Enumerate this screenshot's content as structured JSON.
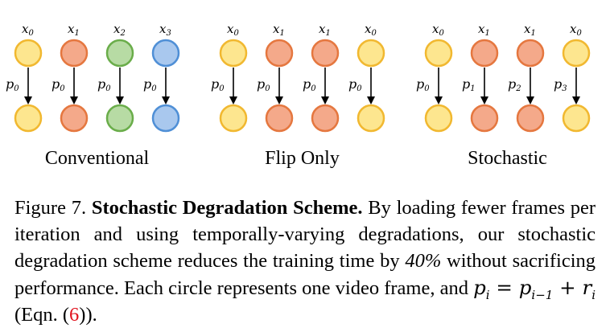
{
  "colors": {
    "yellow_fill": "#fde68f",
    "yellow_stroke": "#f1b830",
    "orange_fill": "#f4a98a",
    "orange_stroke": "#e5773f",
    "green_fill": "#b7dba4",
    "green_stroke": "#6aad4a",
    "blue_fill": "#a9c8ee",
    "blue_stroke": "#4f8fd6",
    "reference_red": "#e0101b"
  },
  "panels": [
    {
      "label": "Conventional",
      "columns": [
        {
          "top": "x0",
          "edge": "p0",
          "color": "yellow"
        },
        {
          "top": "x1",
          "edge": "p0",
          "color": "orange"
        },
        {
          "top": "x2",
          "edge": "p0",
          "color": "green"
        },
        {
          "top": "x3",
          "edge": "p0",
          "color": "blue"
        }
      ]
    },
    {
      "label": "Flip Only",
      "columns": [
        {
          "top": "x0",
          "edge": "p0",
          "color": "yellow"
        },
        {
          "top": "x1",
          "edge": "p0",
          "color": "orange"
        },
        {
          "top": "x1",
          "edge": "p0",
          "color": "orange"
        },
        {
          "top": "x0",
          "edge": "p0",
          "color": "yellow"
        }
      ]
    },
    {
      "label": "Stochastic",
      "columns": [
        {
          "top": "x0",
          "edge": "p0",
          "color": "yellow"
        },
        {
          "top": "x1",
          "edge": "p1",
          "color": "orange"
        },
        {
          "top": "x1",
          "edge": "p2",
          "color": "orange"
        },
        {
          "top": "x0",
          "edge": "p3",
          "color": "yellow"
        }
      ]
    }
  ],
  "caption": {
    "prefix": "Figure 7.",
    "title": "Stochastic Degradation Scheme.",
    "body1": "By loading fewer frames per iteration and using temporally-varying degradations, our stochastic degradation scheme reduces the training time by",
    "percent": "40%",
    "body2": "without sacrificing performance. Each circle represents one video frame, and",
    "eqn_suffix": "(Eqn. (",
    "eqn_ref": "6",
    "eqn_close": "))."
  }
}
